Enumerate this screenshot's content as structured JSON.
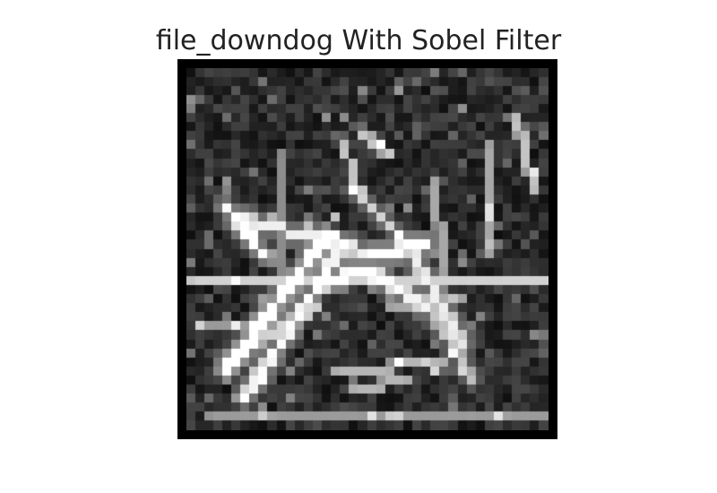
{
  "figure": {
    "title": "file_downdog With Sobel Filter"
  },
  "image": {
    "subject": "sobel-edge-map",
    "colors": {
      "frame": "#000000",
      "background": "#ffffff"
    }
  }
}
